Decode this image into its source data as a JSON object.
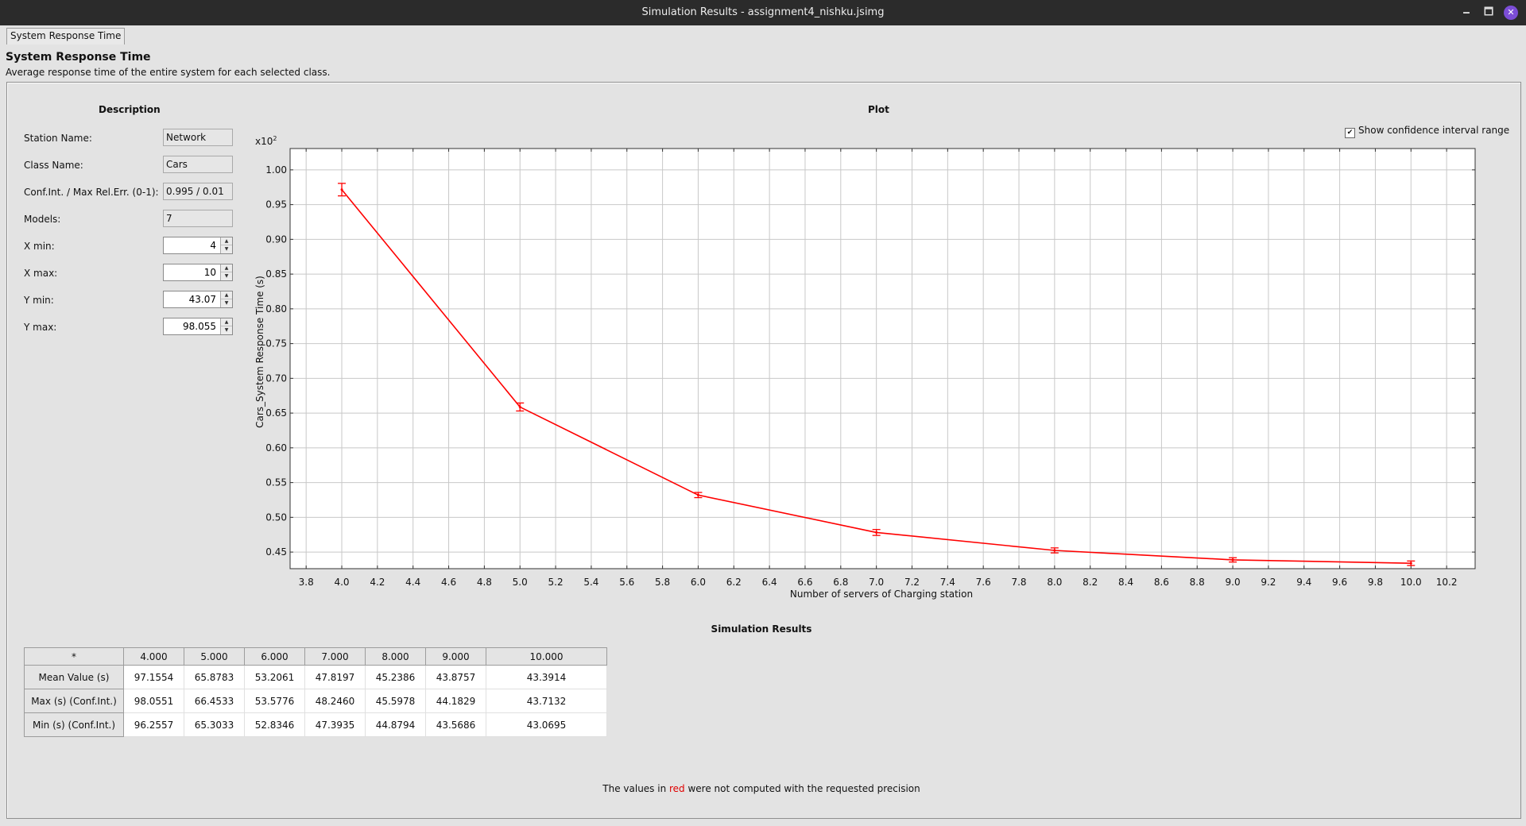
{
  "window": {
    "title": "Simulation Results - assignment4_nishku.jsimg",
    "minimize_glyph": "🗕",
    "maximize_glyph": "🗖",
    "close_glyph": "✕"
  },
  "tab": {
    "label": "System Response Time"
  },
  "header": {
    "title": "System Response Time",
    "subtitle": "Average response time of the entire system for each selected class."
  },
  "description": {
    "title": "Description",
    "station_name_label": "Station Name:",
    "station_name_value": "Network",
    "class_name_label": "Class Name:",
    "class_name_value": "Cars",
    "conf_label": "Conf.Int. / Max Rel.Err. (0-1):",
    "conf_value": "0.995 / 0.01",
    "models_label": "Models:",
    "models_value": "7",
    "xmin_label": "X min:",
    "xmin_value": "4",
    "xmax_label": "X max:",
    "xmax_value": "10",
    "ymin_label": "Y min:",
    "ymin_value": "43.07",
    "ymax_label": "Y max:",
    "ymax_value": "98.055"
  },
  "plot": {
    "title": "Plot",
    "show_ci_label": "Show confidence interval range",
    "show_ci_checked": true,
    "check_glyph": "✔",
    "y_scale_prefix": "x10",
    "y_scale_exp": "2"
  },
  "colors": {
    "series": "#ff0000",
    "grid": "#c8c8c8",
    "plot_bg": "#ffffff",
    "note_red": "#e00000"
  },
  "chart_data": {
    "type": "line",
    "title": "",
    "xlabel": "Number of servers of Charging station",
    "ylabel": "Cars_System Response Time (s)",
    "y_scale_factor": 100,
    "xlim": [
      3.71,
      10.36
    ],
    "ylim": [
      0.4261,
      1.0307
    ],
    "x_ticks": [
      "3.8",
      "4.0",
      "4.2",
      "4.4",
      "4.6",
      "4.8",
      "5.0",
      "5.2",
      "5.4",
      "5.6",
      "5.8",
      "6.0",
      "6.2",
      "6.4",
      "6.6",
      "6.8",
      "7.0",
      "7.2",
      "7.4",
      "7.6",
      "7.8",
      "8.0",
      "8.2",
      "8.4",
      "8.6",
      "8.8",
      "9.0",
      "9.2",
      "9.4",
      "9.6",
      "9.8",
      "10.0",
      "10.2"
    ],
    "y_ticks": [
      "0.45",
      "0.50",
      "0.55",
      "0.60",
      "0.65",
      "0.70",
      "0.75",
      "0.80",
      "0.85",
      "0.90",
      "0.95",
      "1.00"
    ],
    "grid": true,
    "legend": "none",
    "series": [
      {
        "x": [
          4,
          5,
          6,
          7,
          8,
          9,
          10
        ],
        "y": [
          0.971554,
          0.658783,
          0.532061,
          0.478197,
          0.452386,
          0.438757,
          0.433914
        ],
        "y_max": [
          0.980551,
          0.664533,
          0.535776,
          0.48246,
          0.455978,
          0.441829,
          0.437132
        ],
        "y_min": [
          0.962557,
          0.653033,
          0.528346,
          0.473935,
          0.448794,
          0.435686,
          0.430695
        ]
      }
    ]
  },
  "results": {
    "title": "Simulation Results",
    "corner": "*",
    "columns": [
      "4.000",
      "5.000",
      "6.000",
      "7.000",
      "8.000",
      "9.000",
      "10.000"
    ],
    "rows": [
      {
        "label": "Mean Value (s)",
        "values": [
          "97.1554",
          "65.8783",
          "53.2061",
          "47.8197",
          "45.2386",
          "43.8757",
          "43.3914"
        ]
      },
      {
        "label": "Max (s) (Conf.Int.)",
        "values": [
          "98.0551",
          "66.4533",
          "53.5776",
          "48.2460",
          "45.5978",
          "44.1829",
          "43.7132"
        ]
      },
      {
        "label": "Min (s) (Conf.Int.)",
        "values": [
          "96.2557",
          "65.3033",
          "52.8346",
          "47.3935",
          "44.8794",
          "43.5686",
          "43.0695"
        ]
      }
    ]
  },
  "note": {
    "before": "The values in ",
    "red_word": "red",
    "after": " were not computed with the requested precision"
  }
}
